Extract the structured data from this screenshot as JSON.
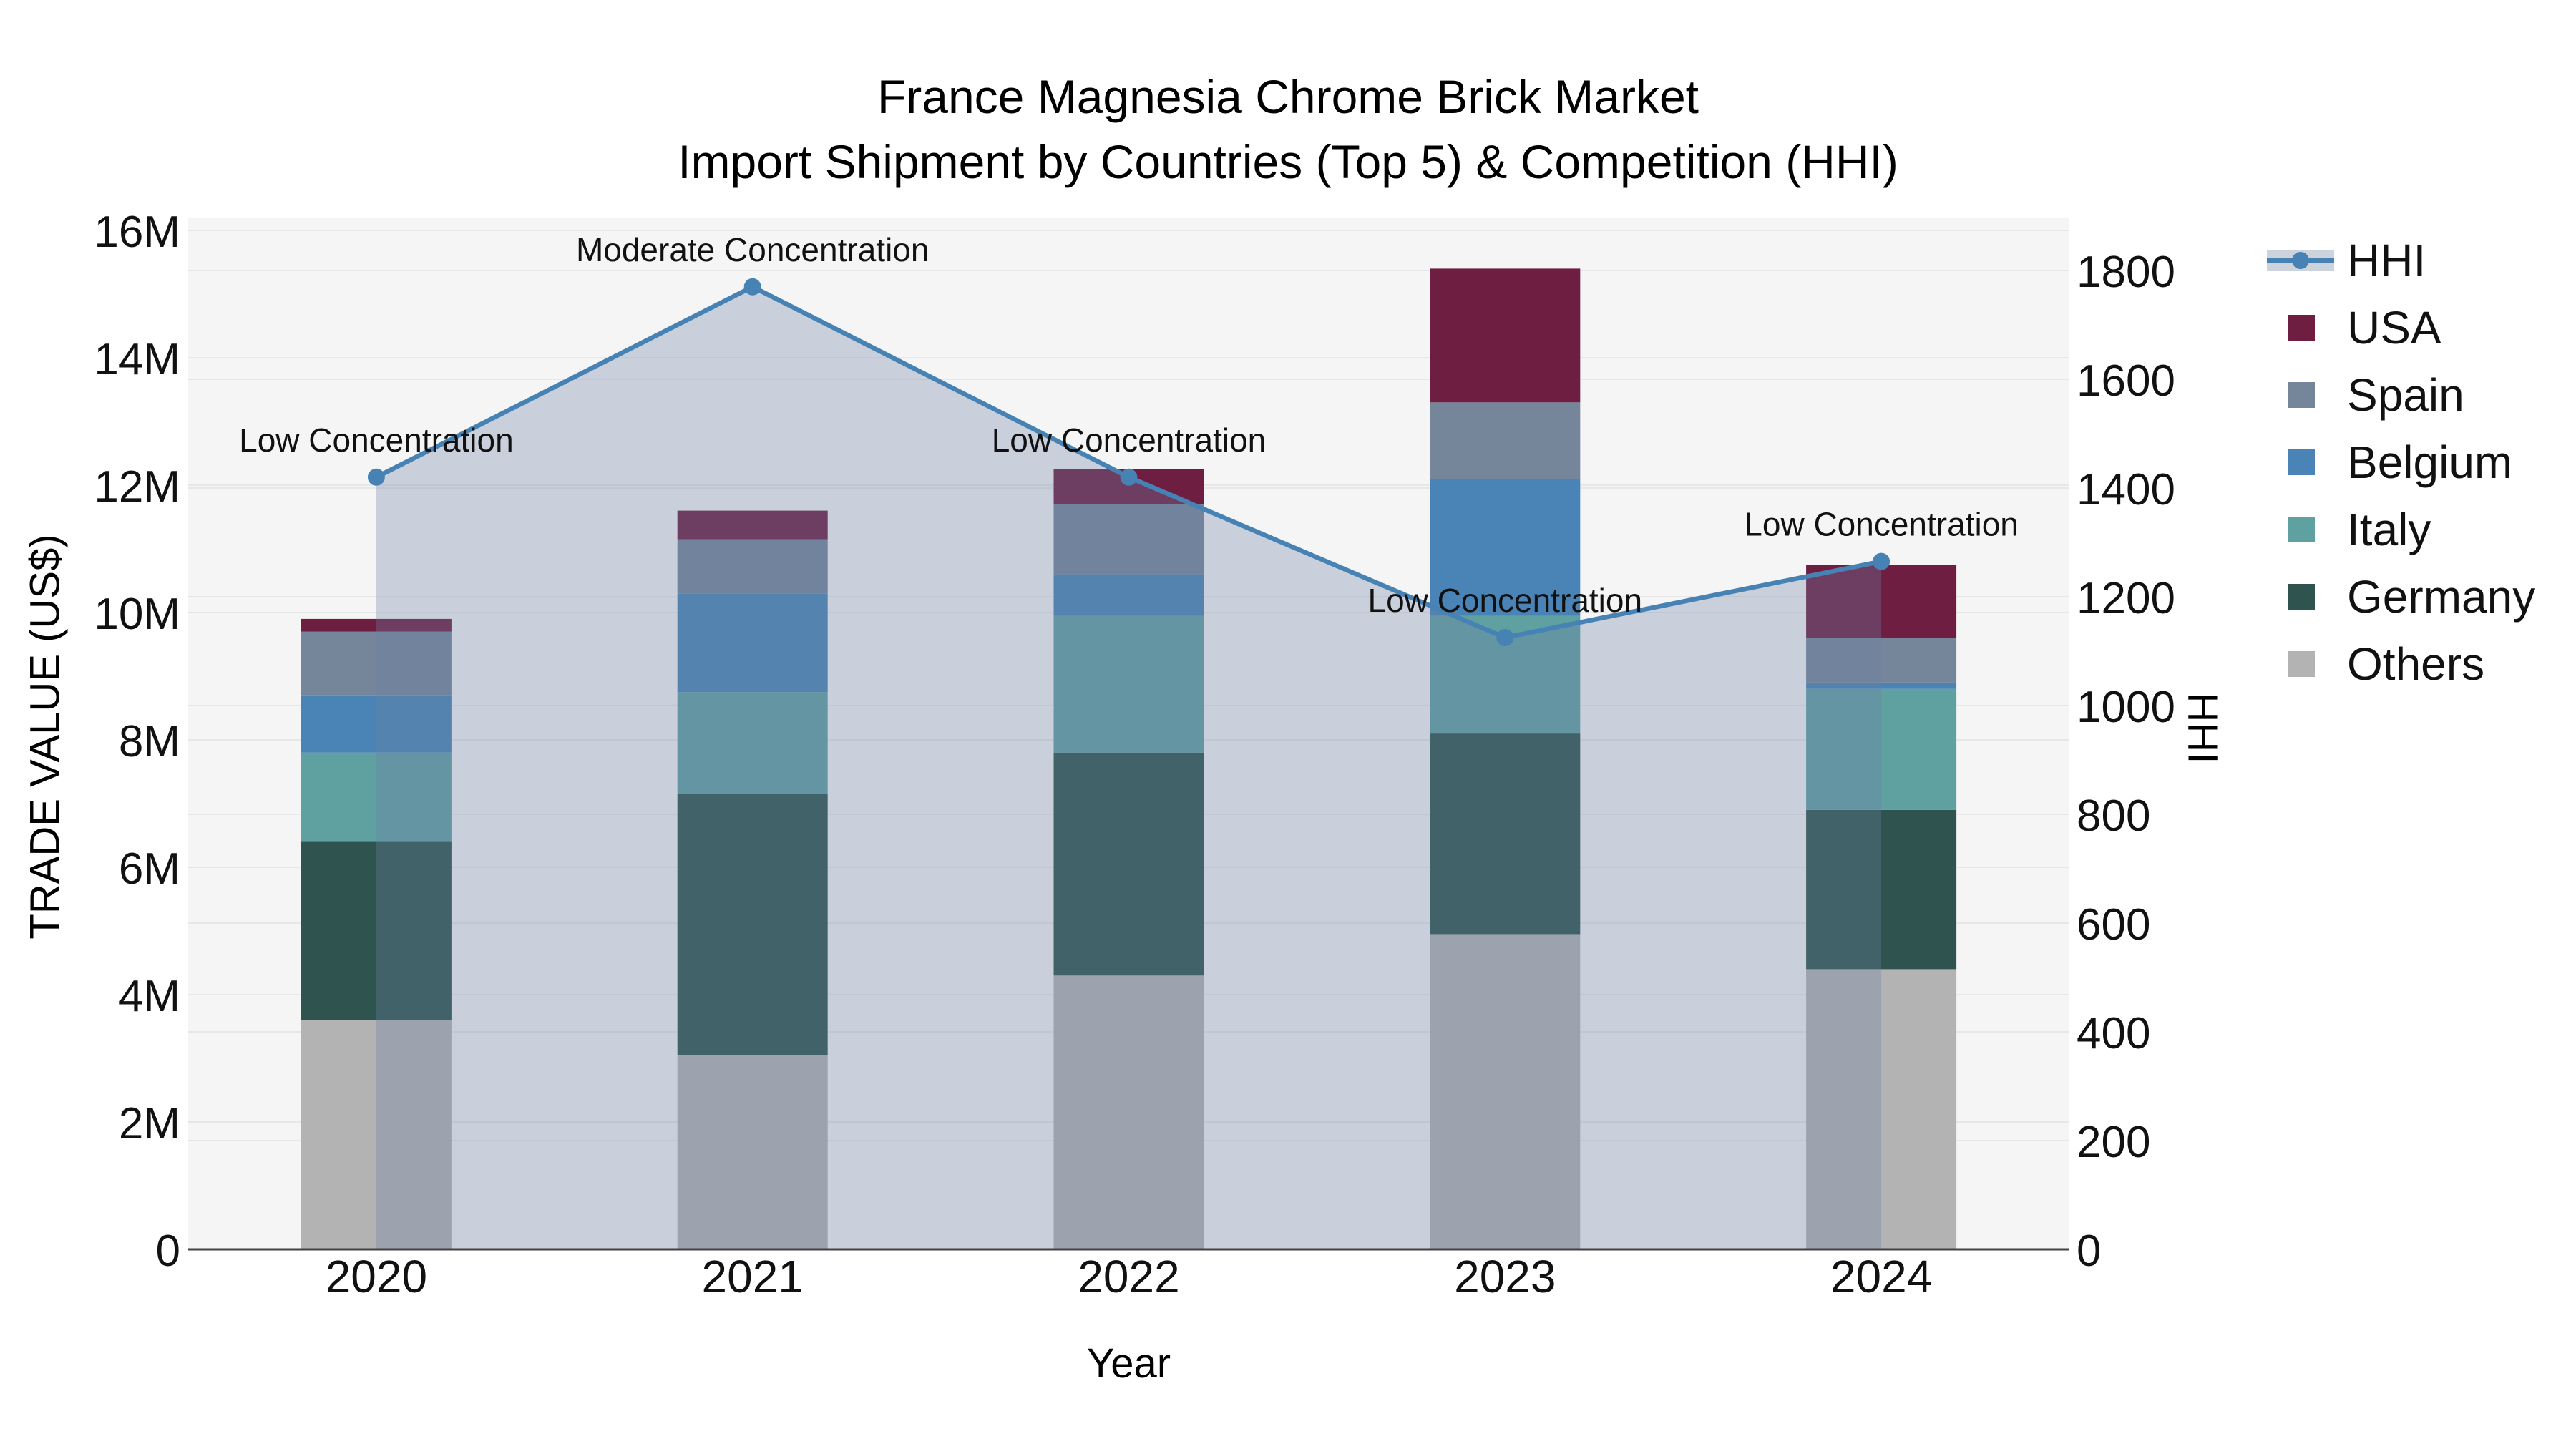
{
  "title": {
    "line1": "France Magnesia Chrome Brick Market",
    "line2": "Import Shipment by Countries (Top 5) & Competition (HHI)"
  },
  "axes": {
    "left": {
      "label": "TRADE VALUE (US$)",
      "ticks": [
        "0",
        "2M",
        "4M",
        "6M",
        "8M",
        "10M",
        "12M",
        "14M",
        "16M"
      ],
      "max_millions": 16
    },
    "right": {
      "label": "HHI",
      "ticks": [
        "0",
        "200",
        "400",
        "600",
        "800",
        "1000",
        "1200",
        "1400",
        "1600",
        "1800"
      ],
      "max": 1800
    },
    "x": {
      "label": "Year",
      "categories": [
        "2020",
        "2021",
        "2022",
        "2023",
        "2024"
      ]
    }
  },
  "legend": {
    "position": "right",
    "items": [
      {
        "label": "HHI",
        "type": "line",
        "color": "#4682b4"
      },
      {
        "label": "USA",
        "type": "swatch",
        "color": "#6e1e41"
      },
      {
        "label": "Spain",
        "type": "swatch",
        "color": "#75859a"
      },
      {
        "label": "Belgium",
        "type": "swatch",
        "color": "#4a83b5"
      },
      {
        "label": "Italy",
        "type": "swatch",
        "color": "#5fa0a1"
      },
      {
        "label": "Germany",
        "type": "swatch",
        "color": "#2f534f"
      },
      {
        "label": "Others",
        "type": "swatch",
        "color": "#b3b3b3"
      }
    ]
  },
  "colors": {
    "plot_background": "#f5f5f5",
    "gridline": "#e7e7e7",
    "axis_line": "#424242",
    "hhi_line": "#4682b4",
    "hhi_fill": "rgba(110,132,165,0.32)"
  },
  "chart_data": {
    "type": "combo: stacked-bar (left axis) + line-with-area (right axis)",
    "title": "France Magnesia Chrome Brick Market — Import Shipment by Countries (Top 5) & Competition (HHI)",
    "xlabel": "Year",
    "ylabel_left": "TRADE VALUE (US$)",
    "ylabel_right": "HHI",
    "categories": [
      "2020",
      "2021",
      "2022",
      "2023",
      "2024"
    ],
    "bar_unit": "millions US$",
    "ylim_left_millions": [
      0,
      16
    ],
    "ylim_right": [
      0,
      1800
    ],
    "grid": true,
    "legend_position": "right",
    "stack_order_bottom_to_top": [
      "Others",
      "Germany",
      "Italy",
      "Belgium",
      "Spain",
      "USA"
    ],
    "series": [
      {
        "name": "Others",
        "color": "#b3b3b3",
        "values": [
          3.6,
          3.05,
          4.3,
          4.95,
          4.4
        ]
      },
      {
        "name": "Germany",
        "color": "#2f534f",
        "values": [
          2.8,
          4.1,
          3.5,
          3.15,
          2.5
        ]
      },
      {
        "name": "Italy",
        "color": "#5fa0a1",
        "values": [
          1.4,
          1.6,
          2.15,
          1.85,
          1.9
        ]
      },
      {
        "name": "Belgium",
        "color": "#4a83b5",
        "values": [
          0.9,
          1.55,
          0.65,
          2.15,
          0.1
        ]
      },
      {
        "name": "Spain",
        "color": "#75859a",
        "values": [
          1.0,
          0.85,
          1.1,
          1.2,
          0.7
        ]
      },
      {
        "name": "USA",
        "color": "#6e1e41",
        "values": [
          0.2,
          0.45,
          0.55,
          2.1,
          1.15
        ]
      }
    ],
    "bar_totals_millions": [
      9.9,
      11.6,
      12.25,
      15.4,
      10.75
    ],
    "line": {
      "name": "HHI",
      "color": "#4682b4",
      "fill": "rgba(110,132,165,0.32)",
      "values": [
        1420,
        1770,
        1420,
        1125,
        1265
      ],
      "annotations": [
        "Low Concentration",
        "Moderate Concentration",
        "Low Concentration",
        "Low Concentration",
        "Low Concentration"
      ]
    }
  }
}
